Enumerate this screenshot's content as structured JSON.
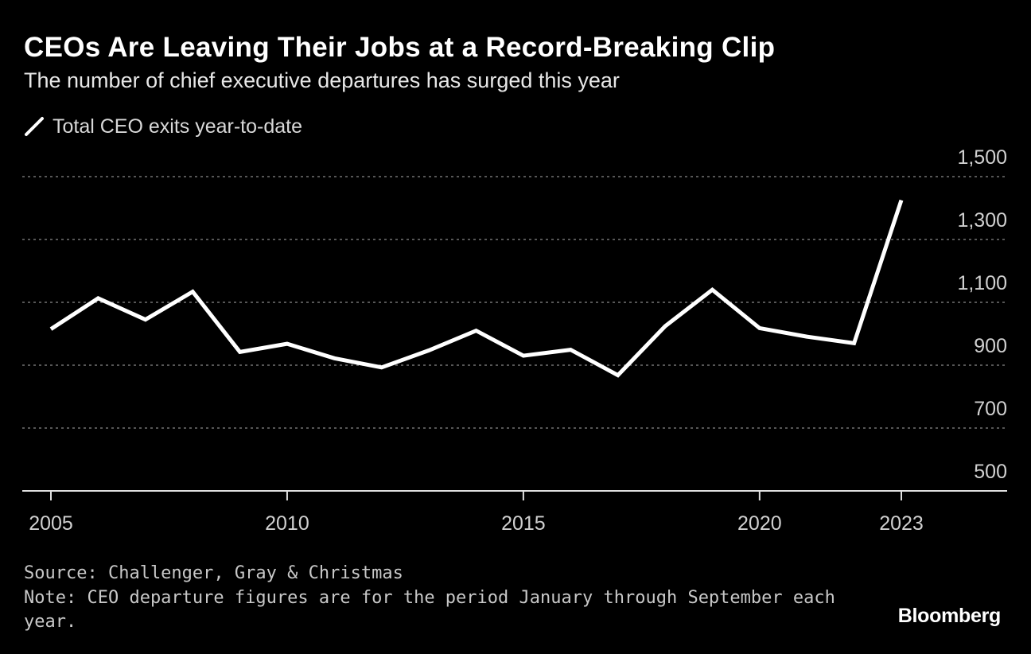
{
  "header": {
    "title": "CEOs Are Leaving Their Jobs at a Record-Breaking Clip",
    "subtitle": "The number of chief executive departures has surged this year"
  },
  "legend": {
    "label": "Total CEO exits year-to-date"
  },
  "footer": {
    "source": "Source: Challenger, Gray & Christmas",
    "note": "Note: CEO departure figures are for the period January through September each year.",
    "brand": "Bloomberg"
  },
  "colors": {
    "background": "#000000",
    "line": "#ffffff",
    "grid": "#8a8a8a",
    "text": "#d0d0d0"
  },
  "chart_data": {
    "type": "line",
    "title": "CEOs Are Leaving Their Jobs at a Record-Breaking Clip",
    "subtitle": "The number of chief executive departures has surged this year",
    "xlabel": "",
    "ylabel": "",
    "xlim": [
      2005,
      2024.9
    ],
    "ylim": [
      500,
      1500
    ],
    "x_ticks": [
      2005,
      2010,
      2015,
      2020,
      2023
    ],
    "y_ticks": [
      500,
      700,
      900,
      1100,
      1300,
      1500
    ],
    "y_tick_labels": [
      "500",
      "700",
      "900",
      "1,100",
      "1,300",
      "1,500"
    ],
    "y_axis_side": "right",
    "grid": "horizontal dotted",
    "legend_position": "top-left",
    "series": [
      {
        "name": "Total CEO exits year-to-date",
        "x": [
          2005,
          2006,
          2007,
          2008,
          2009,
          2010,
          2011,
          2012,
          2013,
          2014,
          2015,
          2016,
          2017,
          2018,
          2019,
          2020,
          2021,
          2022,
          2023
        ],
        "values": [
          1015,
          1113,
          1045,
          1134,
          942,
          968,
          922,
          893,
          947,
          1010,
          930,
          949,
          868,
          1024,
          1140,
          1018,
          991,
          970,
          1425
        ]
      }
    ]
  }
}
